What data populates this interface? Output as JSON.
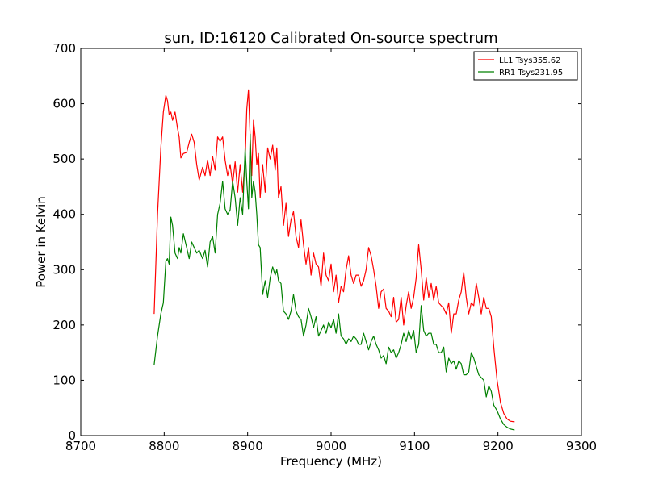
{
  "chart_data": {
    "type": "line",
    "title": "sun, ID:16120 Calibrated On-source spectrum",
    "xlabel": "Frequency (MHz)",
    "ylabel": "Power in Kelvin",
    "xlim": [
      8700,
      9300
    ],
    "ylim": [
      0,
      700
    ],
    "xticks": [
      8700,
      8800,
      8900,
      9000,
      9100,
      9200,
      9300
    ],
    "yticks": [
      0,
      100,
      200,
      300,
      400,
      500,
      600,
      700
    ],
    "grid": false,
    "legend_position": "top-right",
    "series": [
      {
        "name": "LL1 Tsys355.62",
        "color": "#ff0000",
        "points": [
          [
            8788,
            220
          ],
          [
            8792,
            400
          ],
          [
            8796,
            520
          ],
          [
            8799,
            585
          ],
          [
            8802,
            615
          ],
          [
            8804,
            605
          ],
          [
            8806,
            580
          ],
          [
            8808,
            585
          ],
          [
            8810,
            570
          ],
          [
            8813,
            585
          ],
          [
            8816,
            555
          ],
          [
            8818,
            540
          ],
          [
            8820,
            502
          ],
          [
            8823,
            510
          ],
          [
            8827,
            512
          ],
          [
            8830,
            530
          ],
          [
            8833,
            545
          ],
          [
            8836,
            530
          ],
          [
            8839,
            490
          ],
          [
            8842,
            462
          ],
          [
            8846,
            485
          ],
          [
            8849,
            470
          ],
          [
            8852,
            498
          ],
          [
            8855,
            470
          ],
          [
            8858,
            505
          ],
          [
            8861,
            480
          ],
          [
            8864,
            540
          ],
          [
            8867,
            532
          ],
          [
            8870,
            540
          ],
          [
            8873,
            498
          ],
          [
            8876,
            470
          ],
          [
            8879,
            490
          ],
          [
            8882,
            455
          ],
          [
            8885,
            495
          ],
          [
            8888,
            440
          ],
          [
            8891,
            490
          ],
          [
            8894,
            440
          ],
          [
            8897,
            500
          ],
          [
            8899,
            590
          ],
          [
            8901,
            625
          ],
          [
            8903,
            540
          ],
          [
            8905,
            470
          ],
          [
            8907,
            570
          ],
          [
            8909,
            540
          ],
          [
            8911,
            490
          ],
          [
            8913,
            510
          ],
          [
            8915,
            430
          ],
          [
            8918,
            490
          ],
          [
            8921,
            440
          ],
          [
            8924,
            520
          ],
          [
            8927,
            500
          ],
          [
            8930,
            525
          ],
          [
            8933,
            480
          ],
          [
            8935,
            520
          ],
          [
            8937,
            430
          ],
          [
            8940,
            450
          ],
          [
            8943,
            380
          ],
          [
            8946,
            420
          ],
          [
            8949,
            360
          ],
          [
            8952,
            390
          ],
          [
            8955,
            405
          ],
          [
            8958,
            360
          ],
          [
            8961,
            340
          ],
          [
            8964,
            390
          ],
          [
            8967,
            345
          ],
          [
            8970,
            310
          ],
          [
            8973,
            340
          ],
          [
            8976,
            290
          ],
          [
            8979,
            330
          ],
          [
            8982,
            310
          ],
          [
            8985,
            305
          ],
          [
            8988,
            270
          ],
          [
            8991,
            330
          ],
          [
            8994,
            290
          ],
          [
            8997,
            280
          ],
          [
            9000,
            310
          ],
          [
            9003,
            260
          ],
          [
            9006,
            290
          ],
          [
            9009,
            240
          ],
          [
            9012,
            270
          ],
          [
            9015,
            260
          ],
          [
            9018,
            300
          ],
          [
            9021,
            325
          ],
          [
            9024,
            290
          ],
          [
            9027,
            275
          ],
          [
            9030,
            290
          ],
          [
            9033,
            290
          ],
          [
            9036,
            270
          ],
          [
            9039,
            280
          ],
          [
            9042,
            300
          ],
          [
            9045,
            340
          ],
          [
            9048,
            325
          ],
          [
            9051,
            300
          ],
          [
            9054,
            270
          ],
          [
            9057,
            230
          ],
          [
            9060,
            260
          ],
          [
            9063,
            265
          ],
          [
            9066,
            230
          ],
          [
            9069,
            225
          ],
          [
            9072,
            215
          ],
          [
            9075,
            250
          ],
          [
            9078,
            205
          ],
          [
            9081,
            210
          ],
          [
            9084,
            250
          ],
          [
            9087,
            200
          ],
          [
            9090,
            235
          ],
          [
            9093,
            260
          ],
          [
            9096,
            230
          ],
          [
            9099,
            250
          ],
          [
            9102,
            285
          ],
          [
            9105,
            345
          ],
          [
            9108,
            300
          ],
          [
            9111,
            245
          ],
          [
            9114,
            285
          ],
          [
            9117,
            250
          ],
          [
            9120,
            275
          ],
          [
            9123,
            245
          ],
          [
            9126,
            270
          ],
          [
            9129,
            240
          ],
          [
            9132,
            235
          ],
          [
            9135,
            230
          ],
          [
            9138,
            220
          ],
          [
            9141,
            240
          ],
          [
            9144,
            185
          ],
          [
            9147,
            220
          ],
          [
            9150,
            220
          ],
          [
            9153,
            245
          ],
          [
            9156,
            260
          ],
          [
            9159,
            295
          ],
          [
            9162,
            250
          ],
          [
            9165,
            220
          ],
          [
            9168,
            240
          ],
          [
            9171,
            235
          ],
          [
            9174,
            275
          ],
          [
            9177,
            250
          ],
          [
            9180,
            220
          ],
          [
            9183,
            250
          ],
          [
            9186,
            230
          ],
          [
            9189,
            230
          ],
          [
            9192,
            215
          ],
          [
            9195,
            160
          ],
          [
            9199,
            100
          ],
          [
            9203,
            60
          ],
          [
            9207,
            40
          ],
          [
            9211,
            30
          ],
          [
            9215,
            26
          ],
          [
            9220,
            25
          ]
        ]
      },
      {
        "name": "RR1 Tsys231.95",
        "color": "#008000",
        "points": [
          [
            8788,
            128
          ],
          [
            8792,
            180
          ],
          [
            8796,
            220
          ],
          [
            8799,
            240
          ],
          [
            8802,
            315
          ],
          [
            8804,
            320
          ],
          [
            8806,
            310
          ],
          [
            8808,
            395
          ],
          [
            8810,
            380
          ],
          [
            8813,
            330
          ],
          [
            8816,
            320
          ],
          [
            8818,
            340
          ],
          [
            8820,
            330
          ],
          [
            8823,
            365
          ],
          [
            8827,
            340
          ],
          [
            8830,
            320
          ],
          [
            8833,
            350
          ],
          [
            8836,
            340
          ],
          [
            8839,
            330
          ],
          [
            8842,
            335
          ],
          [
            8846,
            320
          ],
          [
            8849,
            335
          ],
          [
            8852,
            305
          ],
          [
            8855,
            350
          ],
          [
            8858,
            360
          ],
          [
            8861,
            330
          ],
          [
            8864,
            400
          ],
          [
            8867,
            420
          ],
          [
            8870,
            460
          ],
          [
            8873,
            410
          ],
          [
            8876,
            400
          ],
          [
            8879,
            408
          ],
          [
            8882,
            460
          ],
          [
            8885,
            430
          ],
          [
            8888,
            380
          ],
          [
            8891,
            430
          ],
          [
            8894,
            400
          ],
          [
            8897,
            520
          ],
          [
            8899,
            460
          ],
          [
            8901,
            410
          ],
          [
            8903,
            545
          ],
          [
            8905,
            430
          ],
          [
            8907,
            460
          ],
          [
            8909,
            440
          ],
          [
            8911,
            400
          ],
          [
            8913,
            345
          ],
          [
            8915,
            340
          ],
          [
            8918,
            255
          ],
          [
            8921,
            280
          ],
          [
            8924,
            250
          ],
          [
            8927,
            285
          ],
          [
            8930,
            305
          ],
          [
            8933,
            290
          ],
          [
            8935,
            300
          ],
          [
            8937,
            280
          ],
          [
            8940,
            275
          ],
          [
            8943,
            225
          ],
          [
            8946,
            220
          ],
          [
            8949,
            210
          ],
          [
            8952,
            225
          ],
          [
            8955,
            255
          ],
          [
            8958,
            225
          ],
          [
            8961,
            215
          ],
          [
            8964,
            210
          ],
          [
            8967,
            180
          ],
          [
            8970,
            200
          ],
          [
            8973,
            230
          ],
          [
            8976,
            215
          ],
          [
            8979,
            195
          ],
          [
            8982,
            215
          ],
          [
            8985,
            180
          ],
          [
            8988,
            190
          ],
          [
            8991,
            200
          ],
          [
            8994,
            185
          ],
          [
            8997,
            205
          ],
          [
            9000,
            195
          ],
          [
            9003,
            210
          ],
          [
            9006,
            185
          ],
          [
            9009,
            220
          ],
          [
            9012,
            180
          ],
          [
            9015,
            175
          ],
          [
            9018,
            165
          ],
          [
            9021,
            175
          ],
          [
            9024,
            170
          ],
          [
            9027,
            180
          ],
          [
            9030,
            175
          ],
          [
            9033,
            165
          ],
          [
            9036,
            165
          ],
          [
            9039,
            185
          ],
          [
            9042,
            170
          ],
          [
            9045,
            155
          ],
          [
            9048,
            170
          ],
          [
            9051,
            180
          ],
          [
            9054,
            165
          ],
          [
            9057,
            155
          ],
          [
            9060,
            140
          ],
          [
            9063,
            145
          ],
          [
            9066,
            130
          ],
          [
            9069,
            160
          ],
          [
            9072,
            150
          ],
          [
            9075,
            155
          ],
          [
            9078,
            140
          ],
          [
            9081,
            150
          ],
          [
            9084,
            165
          ],
          [
            9087,
            185
          ],
          [
            9090,
            170
          ],
          [
            9093,
            190
          ],
          [
            9096,
            175
          ],
          [
            9099,
            190
          ],
          [
            9102,
            150
          ],
          [
            9105,
            165
          ],
          [
            9108,
            235
          ],
          [
            9111,
            190
          ],
          [
            9114,
            180
          ],
          [
            9117,
            185
          ],
          [
            9120,
            185
          ],
          [
            9123,
            165
          ],
          [
            9126,
            165
          ],
          [
            9129,
            150
          ],
          [
            9132,
            150
          ],
          [
            9135,
            160
          ],
          [
            9138,
            115
          ],
          [
            9141,
            140
          ],
          [
            9144,
            130
          ],
          [
            9147,
            135
          ],
          [
            9150,
            120
          ],
          [
            9153,
            135
          ],
          [
            9156,
            130
          ],
          [
            9159,
            110
          ],
          [
            9162,
            110
          ],
          [
            9165,
            115
          ],
          [
            9168,
            150
          ],
          [
            9171,
            140
          ],
          [
            9174,
            125
          ],
          [
            9177,
            110
          ],
          [
            9180,
            105
          ],
          [
            9183,
            100
          ],
          [
            9186,
            70
          ],
          [
            9189,
            90
          ],
          [
            9192,
            80
          ],
          [
            9195,
            55
          ],
          [
            9199,
            45
          ],
          [
            9203,
            30
          ],
          [
            9207,
            20
          ],
          [
            9211,
            15
          ],
          [
            9215,
            12
          ],
          [
            9220,
            10
          ]
        ]
      }
    ]
  }
}
